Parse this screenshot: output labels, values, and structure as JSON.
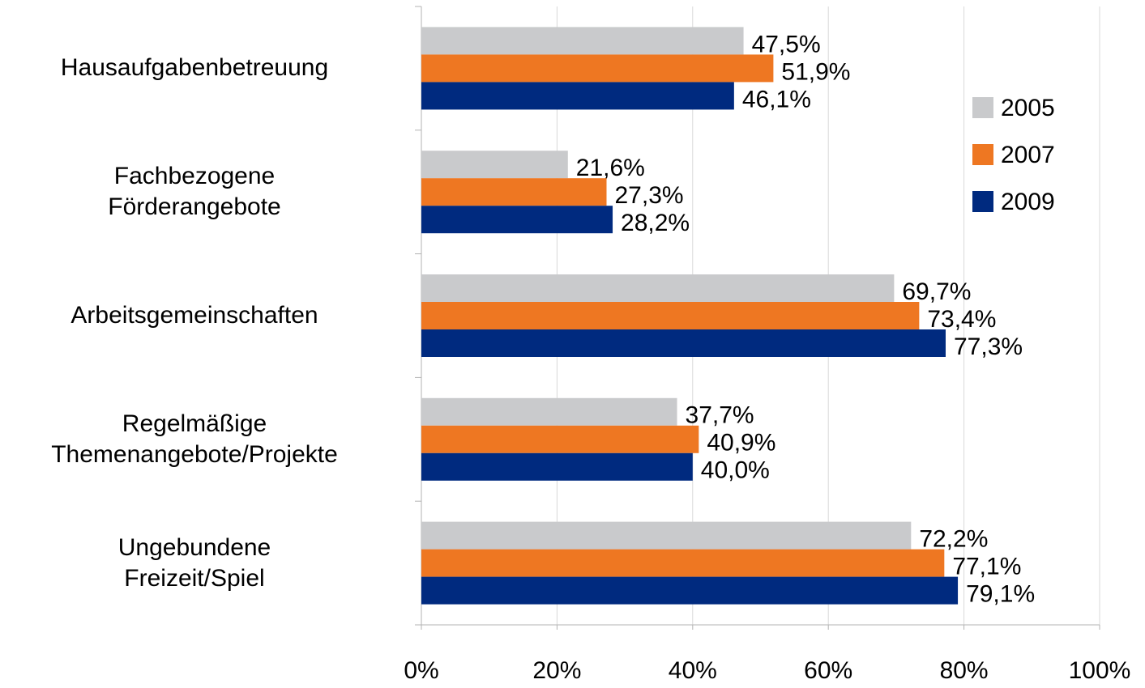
{
  "chart_data": {
    "type": "hbar",
    "categories": [
      "Hausaufgabenbetreuung",
      "Fachbezogene\nFörderangebote",
      "Arbeitsgemeinschaften",
      "Regelmäßige\nThemenangebote/Projekte",
      "Ungebundene\nFreizeit/Spiel"
    ],
    "series": [
      {
        "name": "2005",
        "color": "#c9cacc",
        "values": [
          47.5,
          21.6,
          69.7,
          37.7,
          72.2
        ],
        "value_labels": [
          "47,5%",
          "21,6%",
          "69,7%",
          "37,7%",
          "72,2%"
        ]
      },
      {
        "name": "2007",
        "color": "#ee7722",
        "values": [
          51.9,
          27.3,
          73.4,
          40.9,
          77.1
        ],
        "value_labels": [
          "51,9%",
          "27,3%",
          "73,4%",
          "40,9%",
          "77,1%"
        ]
      },
      {
        "name": "2009",
        "color": "#002a7f",
        "values": [
          46.1,
          28.2,
          77.3,
          40.0,
          79.1
        ],
        "value_labels": [
          "46,1%",
          "28,2%",
          "77,3%",
          "40,0%",
          "79,1%"
        ]
      }
    ],
    "xlim": [
      0,
      100
    ],
    "xticks": [
      {
        "value": 0,
        "label": "0%"
      },
      {
        "value": 20,
        "label": "20%"
      },
      {
        "value": 40,
        "label": "40%"
      },
      {
        "value": 60,
        "label": "60%"
      },
      {
        "value": 80,
        "label": "80%"
      },
      {
        "value": 100,
        "label": "100%"
      }
    ],
    "grid": true,
    "legend": "right"
  }
}
